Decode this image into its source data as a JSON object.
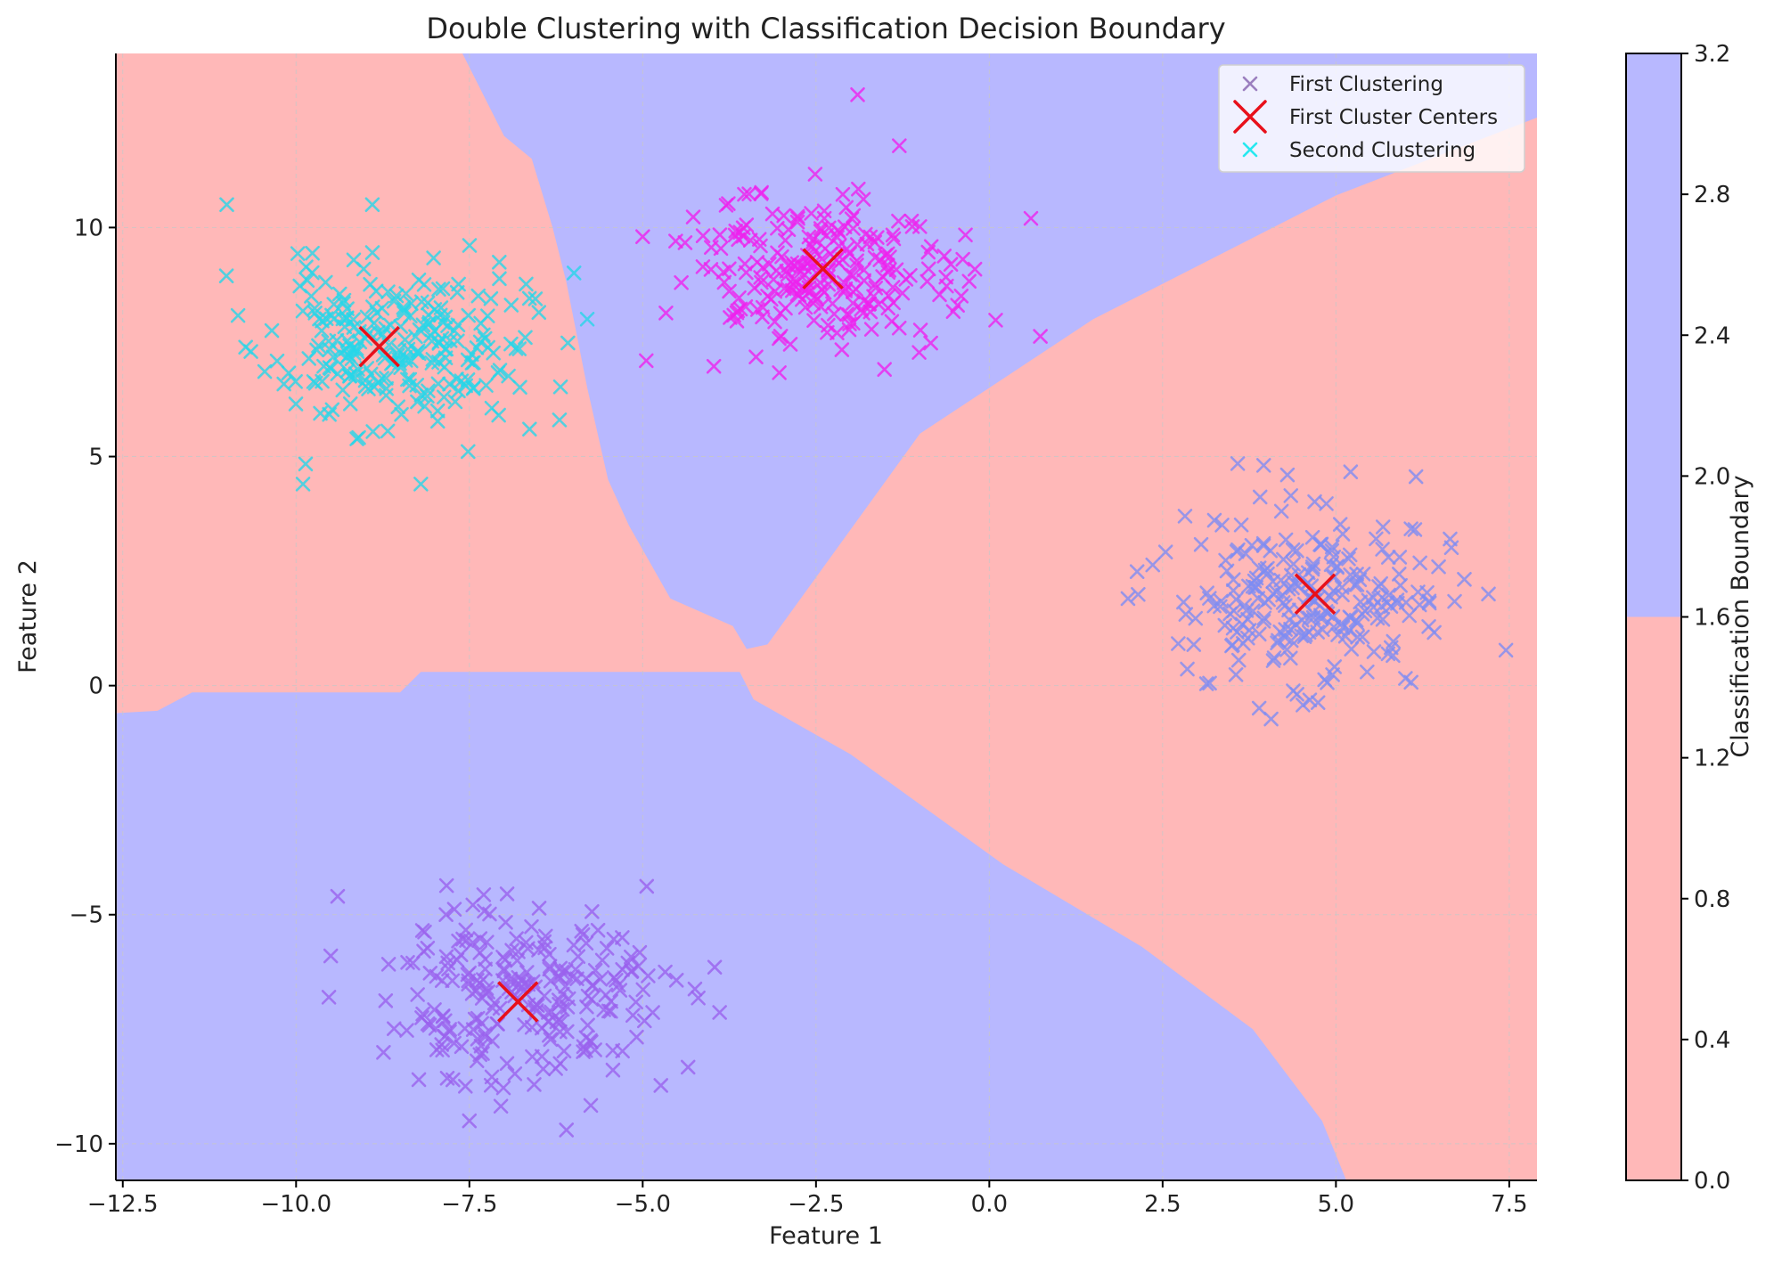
{
  "chart_data": {
    "type": "scatter",
    "title": "Double Clustering with Classification Decision Boundary",
    "xlabel": "Feature 1",
    "ylabel": "Feature 2",
    "xlim": [
      -12.6,
      7.9
    ],
    "ylim": [
      -10.8,
      13.8
    ],
    "xticks": [
      -12.5,
      -10.0,
      -7.5,
      -5.0,
      -2.5,
      0.0,
      2.5,
      5.0,
      7.5
    ],
    "xtick_labels": [
      "−12.5",
      "−10.0",
      "−7.5",
      "−5.0",
      "−2.5",
      "0.0",
      "2.5",
      "5.0",
      "7.5"
    ],
    "yticks": [
      -10,
      -5,
      0,
      5,
      10
    ],
    "ytick_labels": [
      "−10",
      "−5",
      "0",
      "5",
      "10"
    ],
    "grid": true,
    "legend_position": "top-right",
    "legend": [
      "First Clustering",
      "First Cluster Centers",
      "Second Clustering"
    ],
    "decision_regions": {
      "colors": {
        "class_low": "#FFB8B8",
        "class_high": "#B8B8FF"
      },
      "boundary_description": "two classes separated by a piecewise-linear boundary",
      "high_region_polygons": [
        [
          [
            -12.6,
            -0.6
          ],
          [
            -12.0,
            -0.55
          ],
          [
            -11.5,
            -0.15
          ],
          [
            -8.5,
            -0.15
          ],
          [
            -8.2,
            0.3
          ],
          [
            -3.6,
            0.3
          ],
          [
            -3.4,
            -0.3
          ],
          [
            -2.0,
            -1.5
          ],
          [
            0.2,
            -3.9
          ],
          [
            2.2,
            -5.7
          ],
          [
            3.8,
            -7.5
          ],
          [
            4.8,
            -9.5
          ],
          [
            5.15,
            -10.8
          ],
          [
            -12.6,
            -10.8
          ]
        ],
        [
          [
            -6.4,
            13.8
          ],
          [
            7.9,
            13.8
          ],
          [
            7.9,
            12.4
          ],
          [
            5.0,
            10.7
          ],
          [
            1.5,
            8.0
          ],
          [
            -1.0,
            5.5
          ],
          [
            -3.2,
            0.9
          ],
          [
            -3.5,
            0.8
          ],
          [
            -3.7,
            1.3
          ],
          [
            -4.6,
            1.9
          ],
          [
            -5.2,
            3.5
          ],
          [
            -5.5,
            4.5
          ],
          [
            -5.8,
            6.5
          ],
          [
            -6.1,
            8.8
          ],
          [
            -6.3,
            10.0
          ],
          [
            -6.6,
            11.5
          ],
          [
            -7.0,
            12.0
          ],
          [
            -7.6,
            13.8
          ]
        ]
      ]
    },
    "color_scale": {
      "label": "Classification Boundary",
      "ticks": [
        0.0,
        0.4,
        0.8,
        1.2,
        1.6,
        2.0,
        2.4,
        2.8,
        3.2
      ],
      "tick_labels": [
        "0.0",
        "0.4",
        "0.8",
        "1.2",
        "1.6",
        "2.0",
        "2.4",
        "2.8",
        "3.2"
      ],
      "range": [
        0.0,
        3.2
      ],
      "bands": [
        {
          "from": 0.0,
          "to": 1.6,
          "color": "#FFB8B8"
        },
        {
          "from": 1.6,
          "to": 3.2,
          "color": "#B8B8FF"
        }
      ]
    },
    "first_cluster_centers": [
      {
        "x": -8.8,
        "y": 7.4
      },
      {
        "x": -2.4,
        "y": 9.1
      },
      {
        "x": 4.7,
        "y": 2.0
      },
      {
        "x": -6.8,
        "y": -6.9
      }
    ],
    "clusters": [
      {
        "cx": -8.6,
        "cy": 7.4,
        "sx": 0.9,
        "sy": 0.9,
        "n": 240,
        "seed": 11,
        "color": "#27D6E8"
      },
      {
        "cx": -2.5,
        "cy": 9.0,
        "sx": 0.95,
        "sy": 0.85,
        "n": 240,
        "seed": 23,
        "color": "#EE22EE"
      },
      {
        "cx": 4.7,
        "cy": 1.9,
        "sx": 0.95,
        "sy": 0.95,
        "n": 240,
        "seed": 37,
        "color": "#7E8CF2"
      },
      {
        "cx": -6.8,
        "cy": -6.9,
        "sx": 1.0,
        "sy": 0.95,
        "n": 240,
        "seed": 51,
        "color": "#9A62EE"
      }
    ],
    "extra_points": [
      {
        "x": -11.0,
        "y": 10.5,
        "color": "#27D6E8"
      },
      {
        "x": -8.9,
        "y": 10.5,
        "color": "#27D6E8"
      },
      {
        "x": -9.9,
        "y": 4.4,
        "color": "#27D6E8"
      },
      {
        "x": -8.2,
        "y": 4.4,
        "color": "#27D6E8"
      },
      {
        "x": -6.2,
        "y": 5.8,
        "color": "#27D6E8"
      },
      {
        "x": -5.8,
        "y": 8.0,
        "color": "#27D6E8"
      },
      {
        "x": -1.9,
        "y": 12.9,
        "color": "#EE22EE"
      },
      {
        "x": 0.6,
        "y": 10.2,
        "color": "#EE22EE"
      },
      {
        "x": -5.0,
        "y": 9.8,
        "color": "#EE22EE"
      },
      {
        "x": 4.3,
        "y": 4.6,
        "color": "#7E8CF2"
      },
      {
        "x": 7.2,
        "y": 2.0,
        "color": "#7E8CF2"
      },
      {
        "x": 2.0,
        "y": 1.9,
        "color": "#7E8CF2"
      },
      {
        "x": -9.4,
        "y": -4.6,
        "color": "#9A62EE"
      },
      {
        "x": -9.5,
        "y": -5.9,
        "color": "#9A62EE"
      },
      {
        "x": -7.5,
        "y": -9.5,
        "color": "#9A62EE"
      },
      {
        "x": -6.1,
        "y": -9.7,
        "color": "#9A62EE"
      }
    ],
    "legend_marker_colors": {
      "first": "#9B7FBF",
      "centers": "#E8101A",
      "second": "#27E8F0"
    }
  }
}
